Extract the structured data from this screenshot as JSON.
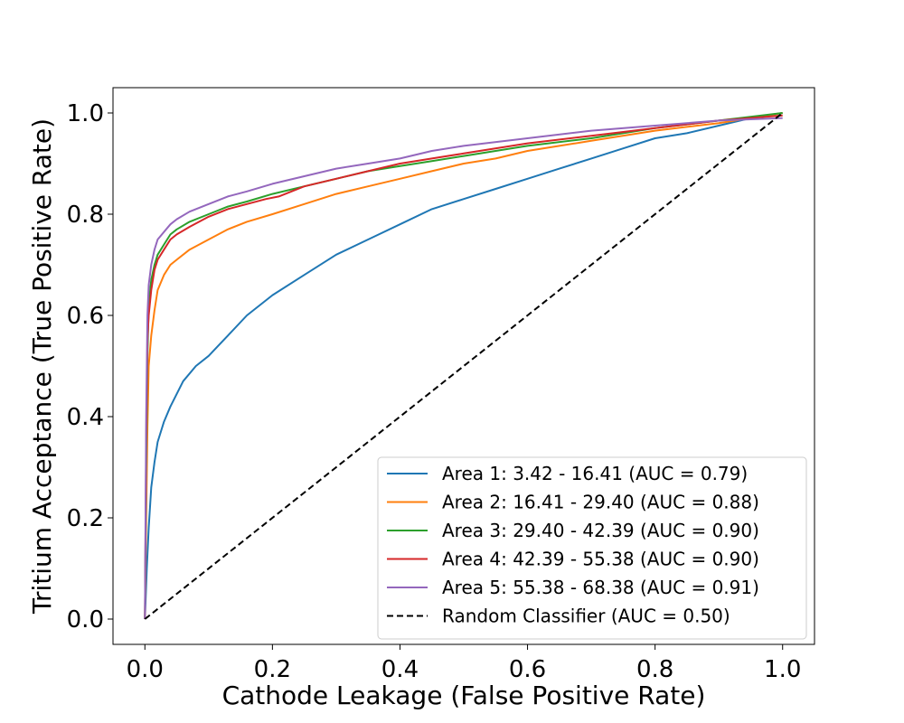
{
  "chart_data": {
    "type": "line",
    "title": "",
    "xlabel": "Cathode Leakage (False Positive Rate)",
    "ylabel": "Tritium Acceptance (True Positive Rate)",
    "xlim": [
      -0.05,
      1.05
    ],
    "ylim": [
      -0.05,
      1.05
    ],
    "xticks": [
      0.0,
      0.2,
      0.4,
      0.6,
      0.8,
      1.0
    ],
    "xtick_labels": [
      "0.0",
      "0.2",
      "0.4",
      "0.6",
      "0.8",
      "1.0"
    ],
    "yticks": [
      0.0,
      0.2,
      0.4,
      0.6,
      0.8,
      1.0
    ],
    "ytick_labels": [
      "0.0",
      "0.2",
      "0.4",
      "0.6",
      "0.8",
      "1.0"
    ],
    "grid": false,
    "legend_position": "lower-right",
    "series": [
      {
        "name": "Area 1: 3.42 - 16.41 (AUC = 0.79)",
        "color": "#1f77b4",
        "style": "solid",
        "x": [
          0.0,
          0.003,
          0.006,
          0.01,
          0.015,
          0.02,
          0.03,
          0.04,
          0.06,
          0.08,
          0.1,
          0.13,
          0.16,
          0.2,
          0.25,
          0.3,
          0.35,
          0.4,
          0.45,
          0.5,
          0.55,
          0.6,
          0.65,
          0.7,
          0.75,
          0.8,
          0.85,
          0.9,
          0.95,
          1.0
        ],
        "y": [
          0.0,
          0.1,
          0.18,
          0.26,
          0.31,
          0.35,
          0.39,
          0.42,
          0.47,
          0.5,
          0.52,
          0.56,
          0.6,
          0.64,
          0.68,
          0.72,
          0.75,
          0.78,
          0.81,
          0.83,
          0.85,
          0.87,
          0.89,
          0.91,
          0.93,
          0.95,
          0.96,
          0.975,
          0.99,
          1.0
        ]
      },
      {
        "name": "Area 2: 16.41 - 29.40 (AUC = 0.88)",
        "color": "#ff7f0e",
        "style": "solid",
        "x": [
          0.0,
          0.002,
          0.004,
          0.006,
          0.01,
          0.015,
          0.02,
          0.03,
          0.04,
          0.05,
          0.07,
          0.1,
          0.13,
          0.16,
          0.2,
          0.25,
          0.3,
          0.35,
          0.4,
          0.45,
          0.5,
          0.55,
          0.6,
          0.65,
          0.7,
          0.8,
          0.9,
          1.0
        ],
        "y": [
          0.0,
          0.2,
          0.38,
          0.5,
          0.56,
          0.61,
          0.65,
          0.68,
          0.7,
          0.71,
          0.73,
          0.75,
          0.77,
          0.785,
          0.8,
          0.82,
          0.84,
          0.855,
          0.87,
          0.885,
          0.9,
          0.91,
          0.925,
          0.935,
          0.945,
          0.965,
          0.98,
          1.0
        ]
      },
      {
        "name": "Area 3: 29.40 - 42.39 (AUC = 0.90)",
        "color": "#2ca02c",
        "style": "solid",
        "x": [
          0.0,
          0.002,
          0.004,
          0.006,
          0.01,
          0.015,
          0.02,
          0.03,
          0.04,
          0.05,
          0.07,
          0.1,
          0.13,
          0.16,
          0.2,
          0.25,
          0.3,
          0.35,
          0.4,
          0.45,
          0.5,
          0.6,
          0.7,
          0.8,
          0.9,
          1.0
        ],
        "y": [
          0.0,
          0.3,
          0.52,
          0.62,
          0.67,
          0.7,
          0.72,
          0.74,
          0.76,
          0.77,
          0.785,
          0.8,
          0.815,
          0.825,
          0.84,
          0.855,
          0.87,
          0.885,
          0.895,
          0.905,
          0.915,
          0.935,
          0.95,
          0.97,
          0.985,
          1.0
        ]
      },
      {
        "name": "Area 4: 42.39 - 55.38 (AUC = 0.90)",
        "color": "#d62728",
        "style": "solid",
        "x": [
          0.0,
          0.002,
          0.004,
          0.006,
          0.01,
          0.015,
          0.02,
          0.03,
          0.04,
          0.05,
          0.07,
          0.1,
          0.13,
          0.16,
          0.19,
          0.21,
          0.23,
          0.25,
          0.3,
          0.35,
          0.4,
          0.45,
          0.5,
          0.6,
          0.7,
          0.8,
          0.9,
          1.0
        ],
        "y": [
          0.0,
          0.35,
          0.55,
          0.6,
          0.65,
          0.69,
          0.71,
          0.73,
          0.75,
          0.76,
          0.775,
          0.795,
          0.81,
          0.82,
          0.83,
          0.835,
          0.845,
          0.855,
          0.87,
          0.885,
          0.9,
          0.91,
          0.92,
          0.94,
          0.955,
          0.97,
          0.985,
          0.995
        ]
      },
      {
        "name": "Area 5: 55.38 - 68.38 (AUC = 0.91)",
        "color": "#9467bd",
        "style": "solid",
        "x": [
          0.0,
          0.002,
          0.004,
          0.006,
          0.01,
          0.015,
          0.02,
          0.03,
          0.04,
          0.05,
          0.07,
          0.1,
          0.13,
          0.16,
          0.2,
          0.25,
          0.3,
          0.35,
          0.4,
          0.45,
          0.5,
          0.6,
          0.7,
          0.8,
          0.9,
          1.0
        ],
        "y": [
          0.0,
          0.4,
          0.6,
          0.66,
          0.7,
          0.73,
          0.75,
          0.765,
          0.78,
          0.79,
          0.805,
          0.82,
          0.835,
          0.845,
          0.86,
          0.875,
          0.89,
          0.9,
          0.91,
          0.925,
          0.935,
          0.95,
          0.965,
          0.975,
          0.985,
          0.99
        ]
      },
      {
        "name": "Random Classifier (AUC = 0.50)",
        "color": "#000000",
        "style": "dashed",
        "x": [
          0.0,
          1.0
        ],
        "y": [
          0.0,
          1.0
        ]
      }
    ]
  }
}
